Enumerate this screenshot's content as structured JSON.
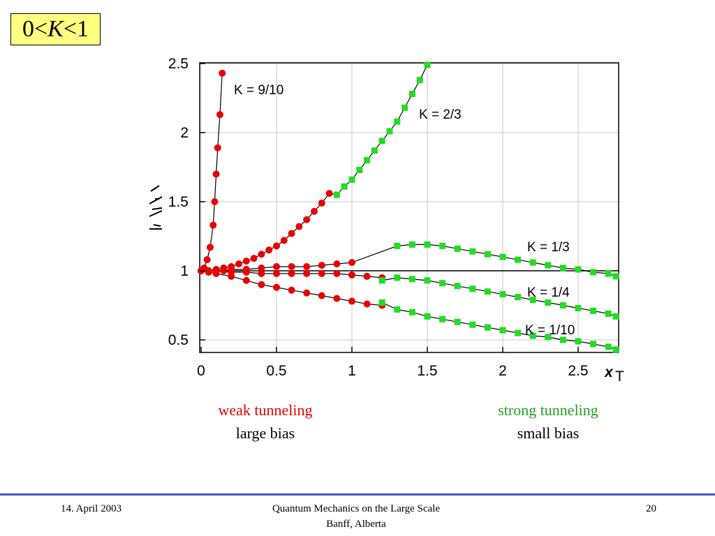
{
  "formula": {
    "left": "0",
    "lt1": "<",
    "k": "K",
    "lt2": "<",
    "right": "1"
  },
  "captions": {
    "weak": "weak tunneling",
    "large_bias": "large bias",
    "strong": "strong tunneling",
    "small_bias": "small bias",
    "weak_color": "#e60000",
    "strong_color": "#22a022"
  },
  "footer": {
    "date": "14. April 2003",
    "title_line1": "Quantum Mechanics on the Large Scale",
    "title_line2": "Banff, Alberta",
    "page": "20",
    "rule_color": "#4a55c6"
  },
  "chart_data": {
    "type": "scatter",
    "xlabel": "x",
    "xlabel_sub": "T",
    "ylabel": "",
    "xlim": [
      0,
      2.75
    ],
    "ylim": [
      0.4,
      2.5
    ],
    "xticks": [
      "0",
      "0.5",
      "1",
      "1.5",
      "2",
      "2.5"
    ],
    "yticks": [
      "0.5",
      "1",
      "1.5",
      "2",
      "2.5"
    ],
    "reference_line_y": 1,
    "colors": {
      "weak": "#e60000",
      "strong": "#22dd22",
      "curve": "#000000"
    },
    "series": [
      {
        "name": "K = 9/10",
        "weak_points": [
          [
            0,
            1.0
          ],
          [
            0.02,
            1.02
          ],
          [
            0.04,
            1.08
          ],
          [
            0.06,
            1.17
          ],
          [
            0.08,
            1.33
          ],
          [
            0.09,
            1.5
          ],
          [
            0.1,
            1.7
          ],
          [
            0.11,
            1.89
          ],
          [
            0.125,
            2.13
          ],
          [
            0.14,
            2.43
          ]
        ],
        "strong_points": []
      },
      {
        "name": "K = 2/3",
        "weak_points": [
          [
            0,
            1.0
          ],
          [
            0.05,
            1.0
          ],
          [
            0.1,
            1.01
          ],
          [
            0.15,
            1.02
          ],
          [
            0.2,
            1.03
          ],
          [
            0.25,
            1.05
          ],
          [
            0.3,
            1.07
          ],
          [
            0.35,
            1.09
          ],
          [
            0.4,
            1.12
          ],
          [
            0.45,
            1.15
          ],
          [
            0.5,
            1.18
          ],
          [
            0.55,
            1.22
          ],
          [
            0.6,
            1.27
          ],
          [
            0.65,
            1.32
          ],
          [
            0.7,
            1.37
          ],
          [
            0.75,
            1.43
          ],
          [
            0.8,
            1.49
          ],
          [
            0.85,
            1.56
          ]
        ],
        "strong_points": [
          [
            0.9,
            1.55
          ],
          [
            0.95,
            1.61
          ],
          [
            1.0,
            1.66
          ],
          [
            1.05,
            1.73
          ],
          [
            1.1,
            1.8
          ],
          [
            1.15,
            1.87
          ],
          [
            1.2,
            1.94
          ],
          [
            1.25,
            2.01
          ],
          [
            1.3,
            2.08
          ],
          [
            1.35,
            2.18
          ],
          [
            1.4,
            2.28
          ],
          [
            1.45,
            2.38
          ],
          [
            1.5,
            2.49
          ]
        ]
      },
      {
        "name": "K = 1/3",
        "weak_points": [
          [
            0,
            1.0
          ],
          [
            0.05,
            1.0
          ],
          [
            0.1,
            1.0
          ],
          [
            0.15,
            1.0
          ],
          [
            0.2,
            1.01
          ],
          [
            0.3,
            1.01
          ],
          [
            0.4,
            1.02
          ],
          [
            0.5,
            1.03
          ],
          [
            0.6,
            1.03
          ],
          [
            0.7,
            1.03
          ],
          [
            0.8,
            1.04
          ],
          [
            0.9,
            1.05
          ],
          [
            1.0,
            1.06
          ]
        ],
        "strong_points": [
          [
            1.3,
            1.18
          ],
          [
            1.4,
            1.19
          ],
          [
            1.5,
            1.19
          ],
          [
            1.6,
            1.18
          ],
          [
            1.7,
            1.16
          ],
          [
            1.8,
            1.14
          ],
          [
            1.9,
            1.12
          ],
          [
            2.0,
            1.1
          ],
          [
            2.1,
            1.08
          ],
          [
            2.2,
            1.06
          ],
          [
            2.3,
            1.04
          ],
          [
            2.4,
            1.02
          ],
          [
            2.5,
            1.01
          ],
          [
            2.6,
            0.99
          ],
          [
            2.7,
            0.98
          ],
          [
            2.8,
            0.96
          ]
        ]
      },
      {
        "name": "K = 1/4",
        "weak_points": [
          [
            0,
            1.0
          ],
          [
            0.05,
            1.0
          ],
          [
            0.1,
            1.0
          ],
          [
            0.2,
            0.99
          ],
          [
            0.3,
            0.99
          ],
          [
            0.4,
            0.98
          ],
          [
            0.5,
            0.98
          ],
          [
            0.6,
            0.98
          ],
          [
            0.7,
            0.98
          ],
          [
            0.8,
            0.98
          ],
          [
            0.9,
            0.98
          ],
          [
            1.0,
            0.97
          ],
          [
            1.1,
            0.96
          ],
          [
            1.2,
            0.95
          ]
        ],
        "strong_points": [
          [
            1.2,
            0.93
          ],
          [
            1.3,
            0.95
          ],
          [
            1.4,
            0.94
          ],
          [
            1.5,
            0.93
          ],
          [
            1.6,
            0.91
          ],
          [
            1.7,
            0.89
          ],
          [
            1.8,
            0.87
          ],
          [
            1.9,
            0.85
          ],
          [
            2.0,
            0.83
          ],
          [
            2.1,
            0.81
          ],
          [
            2.2,
            0.79
          ],
          [
            2.3,
            0.77
          ],
          [
            2.4,
            0.75
          ],
          [
            2.5,
            0.73
          ],
          [
            2.6,
            0.71
          ],
          [
            2.7,
            0.69
          ],
          [
            2.8,
            0.67
          ]
        ]
      },
      {
        "name": "K = 1/10",
        "weak_points": [
          [
            0,
            1.0
          ],
          [
            0.05,
            0.99
          ],
          [
            0.1,
            0.98
          ],
          [
            0.2,
            0.96
          ],
          [
            0.3,
            0.93
          ],
          [
            0.4,
            0.9
          ],
          [
            0.5,
            0.88
          ],
          [
            0.6,
            0.86
          ],
          [
            0.7,
            0.84
          ],
          [
            0.8,
            0.82
          ],
          [
            0.9,
            0.8
          ],
          [
            1.0,
            0.78
          ],
          [
            1.1,
            0.76
          ],
          [
            1.2,
            0.75
          ]
        ],
        "strong_points": [
          [
            1.2,
            0.77
          ],
          [
            1.3,
            0.72
          ],
          [
            1.4,
            0.7
          ],
          [
            1.5,
            0.67
          ],
          [
            1.6,
            0.65
          ],
          [
            1.7,
            0.63
          ],
          [
            1.8,
            0.61
          ],
          [
            1.9,
            0.59
          ],
          [
            2.0,
            0.57
          ],
          [
            2.1,
            0.55
          ],
          [
            2.2,
            0.53
          ],
          [
            2.3,
            0.52
          ],
          [
            2.4,
            0.5
          ],
          [
            2.5,
            0.49
          ],
          [
            2.6,
            0.47
          ],
          [
            2.7,
            0.45
          ],
          [
            2.8,
            0.43
          ]
        ]
      }
    ]
  }
}
